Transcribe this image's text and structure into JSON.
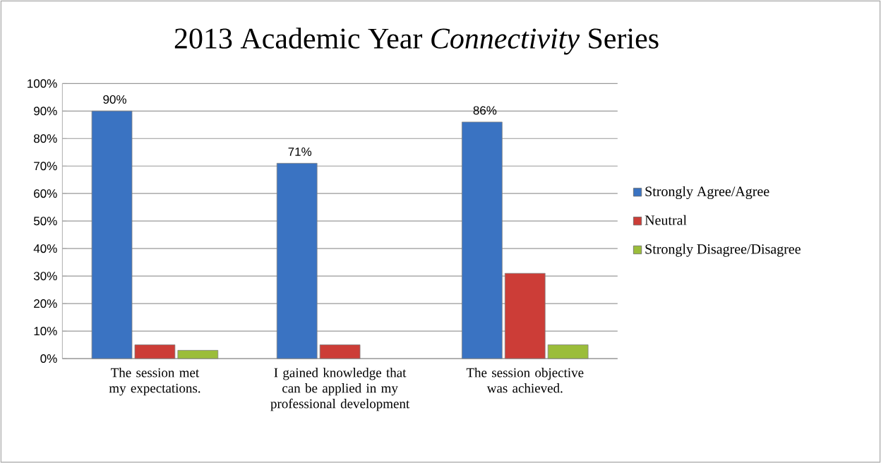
{
  "chart_data": {
    "type": "bar",
    "title": "2013 Academic Year *Connectivity* Series",
    "categories": [
      "The session met my expectations.",
      "I gained knowledge that can be applied in my professional development",
      "The session objective was achieved."
    ],
    "series": [
      {
        "name": "Strongly Agree/Agree",
        "color": "#3a73c2",
        "values": [
          90,
          71,
          86
        ],
        "value_labels": [
          "90%",
          "71%",
          "86%"
        ]
      },
      {
        "name": "Neutral",
        "color": "#cc3d37",
        "values": [
          5,
          5,
          31
        ]
      },
      {
        "name": "Strongly Disagree/Disagree",
        "color": "#9bbd3a",
        "values": [
          3,
          null,
          5
        ]
      }
    ],
    "ylim": [
      0,
      100
    ],
    "yticks": [
      {
        "value": 0,
        "label": "0%"
      },
      {
        "value": 10,
        "label": "10%"
      },
      {
        "value": 20,
        "label": "20%"
      },
      {
        "value": 30,
        "label": "30%"
      },
      {
        "value": 40,
        "label": "40%"
      },
      {
        "value": 50,
        "label": "50%"
      },
      {
        "value": 60,
        "label": "60%"
      },
      {
        "value": 70,
        "label": "70%"
      },
      {
        "value": 80,
        "label": "80%"
      },
      {
        "value": 90,
        "label": "90%"
      },
      {
        "value": 100,
        "label": "100%"
      }
    ],
    "grid": "y",
    "legend": "right"
  }
}
